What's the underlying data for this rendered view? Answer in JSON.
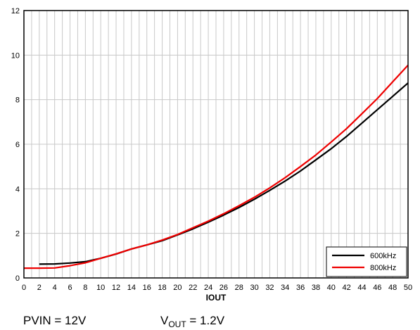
{
  "chart_data": {
    "type": "line",
    "title": "",
    "xlabel": "IOUT",
    "ylabel": "",
    "xlim": [
      0,
      50
    ],
    "ylim": [
      0,
      12
    ],
    "xticks": [
      0,
      2,
      4,
      6,
      8,
      10,
      12,
      14,
      16,
      18,
      20,
      22,
      24,
      26,
      28,
      30,
      32,
      34,
      36,
      38,
      40,
      42,
      44,
      46,
      48,
      50
    ],
    "yticks": [
      0,
      2,
      4,
      6,
      8,
      10,
      12
    ],
    "x_minor_step": 1,
    "grid": true,
    "legend_position": "bottom-right",
    "series": [
      {
        "name": "600kHz",
        "color": "#000000",
        "points": [
          [
            2,
            0.62
          ],
          [
            4,
            0.63
          ],
          [
            6,
            0.67
          ],
          [
            8,
            0.73
          ],
          [
            10,
            0.88
          ],
          [
            12,
            1.07
          ],
          [
            14,
            1.3
          ],
          [
            16,
            1.48
          ],
          [
            18,
            1.67
          ],
          [
            20,
            1.93
          ],
          [
            22,
            2.2
          ],
          [
            24,
            2.5
          ],
          [
            26,
            2.82
          ],
          [
            28,
            3.16
          ],
          [
            30,
            3.53
          ],
          [
            32,
            3.93
          ],
          [
            34,
            4.35
          ],
          [
            36,
            4.8
          ],
          [
            38,
            5.3
          ],
          [
            40,
            5.8
          ],
          [
            42,
            6.35
          ],
          [
            44,
            6.95
          ],
          [
            46,
            7.55
          ],
          [
            48,
            8.15
          ],
          [
            50,
            8.75
          ]
        ]
      },
      {
        "name": "800kHz",
        "color": "#ee0000",
        "points": [
          [
            0,
            0.44
          ],
          [
            2,
            0.44
          ],
          [
            4,
            0.45
          ],
          [
            6,
            0.55
          ],
          [
            8,
            0.68
          ],
          [
            10,
            0.88
          ],
          [
            12,
            1.08
          ],
          [
            14,
            1.3
          ],
          [
            16,
            1.48
          ],
          [
            18,
            1.7
          ],
          [
            20,
            1.95
          ],
          [
            22,
            2.25
          ],
          [
            24,
            2.55
          ],
          [
            26,
            2.88
          ],
          [
            28,
            3.24
          ],
          [
            30,
            3.62
          ],
          [
            32,
            4.04
          ],
          [
            34,
            4.5
          ],
          [
            36,
            5.0
          ],
          [
            38,
            5.52
          ],
          [
            40,
            6.1
          ],
          [
            42,
            6.7
          ],
          [
            44,
            7.37
          ],
          [
            46,
            8.05
          ],
          [
            48,
            8.8
          ],
          [
            50,
            9.55
          ]
        ]
      }
    ]
  },
  "footer": {
    "pvin": "PVIN = 12V",
    "vout_main": "V",
    "vout_sub": "OUT",
    "vout_rest": " = 1.2V"
  }
}
